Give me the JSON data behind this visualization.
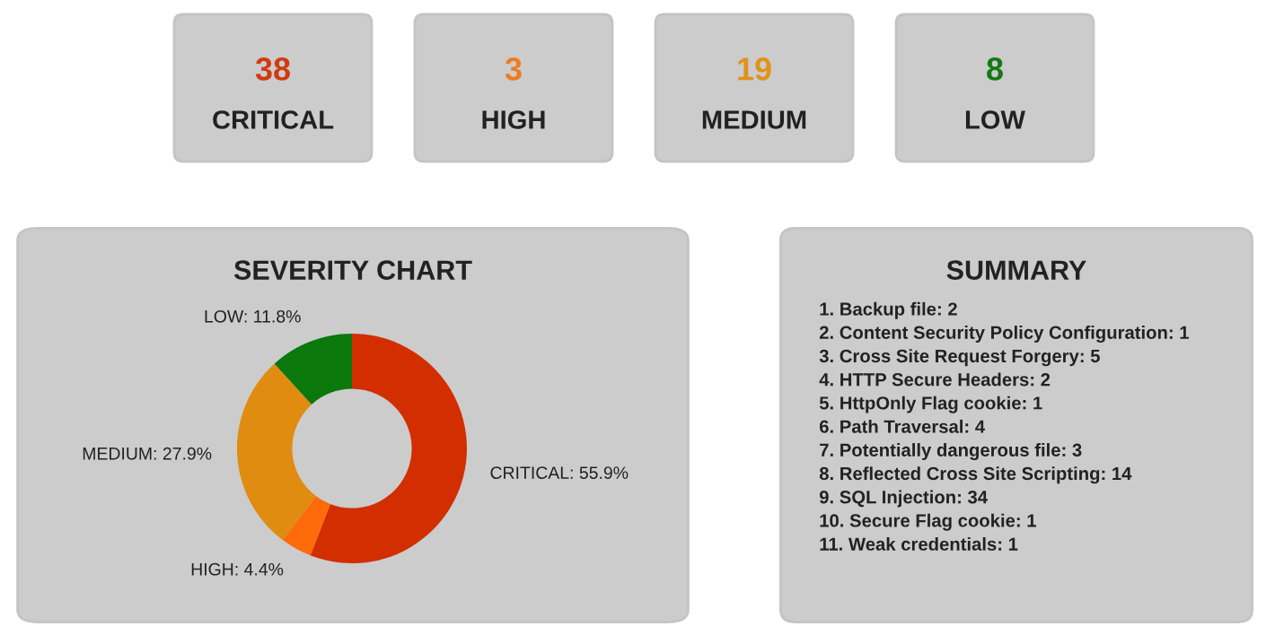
{
  "chart_data": [
    {
      "type": "other",
      "annotations": [
        "38",
        "CRITICAL",
        "3",
        "HIGH",
        "19",
        "MEDIUM",
        "8",
        "LOW"
      ],
      "colors": [
        "#d03a10",
        "#f07a20",
        "#e0921a",
        "#137a13"
      ]
    },
    {
      "type": "donut",
      "title": "SEVERITY CHART",
      "categories": [
        "CRITICAL: 55.9%",
        "HIGH: 4.4%",
        "MEDIUM: 27.9%",
        "LOW: 11.8%"
      ],
      "values": [
        55.9,
        4.4,
        27.9,
        11.8
      ],
      "colors": [
        "#d22e00",
        "#ff6a0a",
        "#e08c10",
        "#0a780a"
      ]
    },
    {
      "type": "other",
      "title": "SUMMARY",
      "annotations": [
        "1. Backup file: 2",
        "2. Content Security Policy Configuration: 1",
        "3. Cross Site Request Forgery: 5",
        "4. HTTP Secure Headers: 2",
        "5. HttpOnly Flag cookie: 1",
        "6. Path Traversal: 4",
        "7. Potentially dangerous file: 3",
        "8. Reflected Cross Site Scripting: 14",
        "9. SQL Injection: 34",
        "10. Secure Flag cookie: 1",
        "11. Weak credentials: 1"
      ]
    }
  ]
}
